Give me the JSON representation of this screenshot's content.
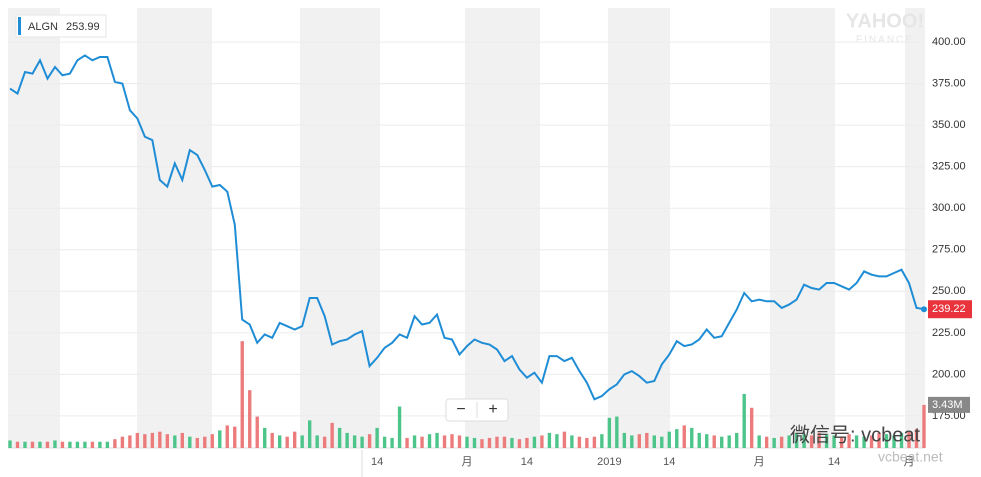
{
  "chart_data": {
    "type": "stock",
    "legend_price": 253.99,
    "categories": [
      null,
      null,
      null,
      null,
      null,
      null,
      null,
      null,
      null,
      null,
      null,
      null,
      null,
      null,
      null,
      null,
      null,
      null,
      null,
      null,
      null,
      null,
      null,
      null,
      null,
      null,
      null,
      null,
      null,
      null,
      null,
      null,
      null,
      null,
      null,
      null,
      null,
      null,
      null,
      null,
      null,
      null,
      null,
      null,
      null,
      null,
      null,
      null,
      null,
      "14",
      null,
      null,
      null,
      null,
      null,
      null,
      null,
      null,
      null,
      null,
      null,
      "月",
      null,
      null,
      null,
      null,
      null,
      null,
      null,
      "14",
      null,
      null,
      null,
      null,
      null,
      null,
      null,
      null,
      null,
      null,
      "2019",
      null,
      null,
      null,
      null,
      null,
      null,
      null,
      "14",
      null,
      null,
      null,
      null,
      null,
      null,
      null,
      null,
      null,
      null,
      null,
      "月",
      null,
      null,
      null,
      null,
      null,
      null,
      null,
      null,
      null,
      "14",
      null,
      null,
      null,
      null,
      null,
      null,
      null,
      null,
      null,
      "月",
      null,
      null
    ],
    "series": [
      {
        "name": "ALGN",
        "color": "#1f8dd6",
        "values": [
          372,
          369,
          382,
          381,
          389,
          378,
          385,
          380,
          381,
          389,
          392,
          389,
          391,
          391,
          376,
          375,
          359,
          354,
          343,
          341,
          317,
          313,
          327,
          317,
          335,
          332,
          323,
          313,
          314,
          310,
          290,
          233,
          230,
          219,
          224,
          222,
          231,
          229,
          227,
          229,
          246,
          246,
          235,
          218,
          220,
          221,
          224,
          226,
          205,
          210,
          216,
          219,
          224,
          222,
          235,
          230,
          231,
          236,
          222,
          221,
          212,
          217,
          221,
          219,
          218,
          215,
          208,
          211,
          203,
          198,
          201,
          195,
          211,
          211,
          208,
          210,
          202,
          195,
          185,
          187,
          191,
          194,
          200,
          202,
          199,
          195,
          196,
          206,
          212,
          220,
          217,
          218,
          221,
          227,
          222,
          223,
          231,
          239,
          249,
          244,
          245,
          244,
          244,
          240,
          242,
          245,
          254,
          252,
          251,
          255,
          255,
          253,
          251,
          255,
          262,
          260,
          259,
          259,
          261,
          263,
          255,
          240,
          239.22
        ]
      },
      {
        "name": "Volume",
        "up_color": "#4cc48a",
        "down_color": "#ec7b7b",
        "values": [
          0.6,
          0.5,
          0.5,
          0.5,
          0.5,
          0.5,
          0.6,
          0.5,
          0.5,
          0.5,
          0.5,
          0.5,
          0.5,
          0.5,
          0.7,
          0.9,
          1.0,
          1.2,
          1.1,
          1.2,
          1.3,
          1.1,
          1.0,
          1.2,
          0.9,
          0.8,
          0.9,
          1.1,
          1.4,
          1.8,
          1.7,
          8.5,
          4.6,
          2.5,
          1.6,
          1.2,
          1.0,
          0.9,
          1.3,
          1.0,
          2.2,
          1.0,
          0.9,
          2.0,
          1.6,
          1.2,
          1.0,
          0.9,
          1.1,
          1.6,
          0.9,
          0.8,
          3.3,
          0.8,
          1.0,
          0.9,
          1.1,
          1.2,
          1.0,
          1.1,
          1.0,
          0.9,
          0.8,
          0.7,
          0.8,
          0.9,
          0.9,
          0.8,
          0.7,
          0.8,
          0.9,
          1.0,
          1.2,
          1.1,
          1.3,
          1.0,
          0.9,
          0.8,
          0.9,
          1.1,
          2.4,
          2.5,
          1.2,
          1.0,
          1.1,
          1.2,
          1.0,
          0.9,
          1.3,
          1.5,
          1.8,
          1.6,
          1.2,
          1.1,
          1.0,
          0.9,
          1.0,
          1.2,
          4.3,
          3.2,
          1.0,
          0.9,
          0.8,
          0.9,
          1.0,
          1.2,
          1.1,
          1.0,
          1.2,
          1.1,
          1.0,
          0.9,
          1.1,
          1.0,
          0.9,
          1.0,
          1.2,
          1.1,
          1.0,
          1.2,
          1.3,
          1.5,
          3.43
        ]
      }
    ],
    "volume_last_label": "3.43M",
    "ylim": [
      155.7,
      420.5
    ],
    "yticks": [
      {
        "value": 400,
        "label": "400.00"
      },
      {
        "value": 375,
        "label": "375.00"
      },
      {
        "value": 350,
        "label": "350.00"
      },
      {
        "value": 325,
        "label": "325.00"
      },
      {
        "value": 300,
        "label": "300.00"
      },
      {
        "value": 275,
        "label": "275.00"
      },
      {
        "value": 250,
        "label": "250.00"
      },
      {
        "value": 225,
        "label": "225.00"
      },
      {
        "value": 200,
        "label": "200.00"
      },
      {
        "value": 175,
        "label": "175.00"
      }
    ],
    "volume_ylim": [
      0,
      35
    ],
    "grid": true
  },
  "controls": {
    "zoom_out": "−",
    "zoom_in": "+"
  },
  "watermarks": {
    "brand": "YAHOO!",
    "brand_sub": "FINANCE",
    "wechat": "微信号: vcbeat",
    "site": "vcbeat.net"
  }
}
